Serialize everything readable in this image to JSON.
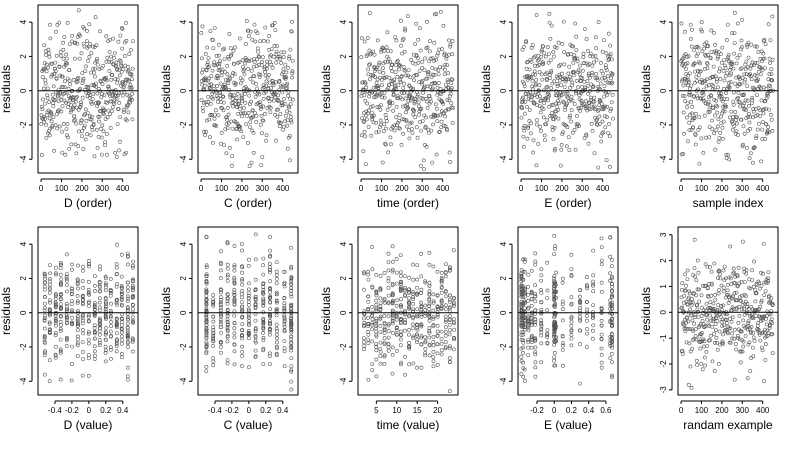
{
  "chart_data": [
    {
      "type": "scatter",
      "xlabel": "D (order)",
      "ylabel": "residuals",
      "xlim": [
        -15,
        475
      ],
      "ylim": [
        -4.8,
        5.0
      ],
      "xticks": [
        0,
        100,
        200,
        300,
        400
      ],
      "yticks": [
        -4,
        -2,
        0,
        2,
        4
      ],
      "reference_line_y": 0,
      "n_points": 450,
      "x_pattern": "index",
      "y_pattern": "normal",
      "y_sd": 1.7,
      "y_extent": [
        -3.9,
        4.7
      ],
      "seed": 11
    },
    {
      "type": "scatter",
      "xlabel": "C (order)",
      "ylabel": "residuals",
      "xlim": [
        -15,
        475
      ],
      "ylim": [
        -4.8,
        5.0
      ],
      "xticks": [
        0,
        100,
        200,
        300,
        400
      ],
      "yticks": [
        -4,
        -2,
        0,
        2,
        4
      ],
      "reference_line_y": 0,
      "n_points": 450,
      "x_pattern": "index",
      "y_pattern": "normal",
      "y_sd": 1.7,
      "y_extent": [
        -4.6,
        4.1
      ],
      "seed": 23
    },
    {
      "type": "scatter",
      "xlabel": "time (order)",
      "ylabel": "residuals",
      "xlim": [
        -15,
        475
      ],
      "ylim": [
        -4.8,
        5.0
      ],
      "xticks": [
        0,
        100,
        200,
        300,
        400
      ],
      "yticks": [
        -4,
        -2,
        0,
        2,
        4
      ],
      "reference_line_y": 0,
      "n_points": 450,
      "x_pattern": "index",
      "y_pattern": "normal",
      "y_sd": 1.7,
      "y_extent": [
        -4.6,
        4.6
      ],
      "seed": 37
    },
    {
      "type": "scatter",
      "xlabel": "E (order)",
      "ylabel": "residuals",
      "xlim": [
        -15,
        475
      ],
      "ylim": [
        -4.8,
        5.0
      ],
      "xticks": [
        0,
        100,
        200,
        300,
        400
      ],
      "yticks": [
        -4,
        -2,
        0,
        2,
        4
      ],
      "reference_line_y": 0,
      "n_points": 450,
      "x_pattern": "index",
      "y_pattern": "normal",
      "y_sd": 1.7,
      "y_extent": [
        -4.5,
        4.6
      ],
      "seed": 41
    },
    {
      "type": "scatter",
      "xlabel": "sample index",
      "ylabel": "residuals",
      "xlim": [
        -15,
        475
      ],
      "ylim": [
        -4.8,
        5.0
      ],
      "xticks": [
        0,
        100,
        200,
        300,
        400
      ],
      "yticks": [
        -4,
        -2,
        0,
        2,
        4
      ],
      "reference_line_y": 0,
      "n_points": 450,
      "x_pattern": "index",
      "y_pattern": "normal",
      "y_sd": 1.7,
      "y_extent": [
        -4.4,
        4.6
      ],
      "seed": 53
    },
    {
      "type": "scatter",
      "xlabel": "D (value)",
      "ylabel": "residuals",
      "xlim": [
        -0.6,
        0.58
      ],
      "ylim": [
        -4.8,
        5.0
      ],
      "xticks": [
        -0.4,
        -0.2,
        0.0,
        0.2,
        0.4
      ],
      "yticks": [
        -4,
        -2,
        0,
        2,
        4
      ],
      "reference_line_y": 0,
      "n_points": 450,
      "x_pattern": "discrete",
      "x_levels": [
        -0.52,
        -0.46,
        -0.39,
        -0.33,
        -0.26,
        -0.2,
        -0.13,
        -0.07,
        0.0,
        0.07,
        0.13,
        0.2,
        0.26,
        0.33,
        0.39,
        0.46,
        0.52
      ],
      "y_pattern": "normal",
      "y_sd": 1.6,
      "y_extent": [
        -4.0,
        4.5
      ],
      "seed": 61
    },
    {
      "type": "scatter",
      "xlabel": "C (value)",
      "ylabel": "residuals",
      "xlim": [
        -0.6,
        0.58
      ],
      "ylim": [
        -4.8,
        5.0
      ],
      "xticks": [
        -0.4,
        -0.2,
        0.0,
        0.2,
        0.4
      ],
      "yticks": [
        -4,
        -2,
        0,
        2,
        4
      ],
      "reference_line_y": 0,
      "n_points": 450,
      "x_pattern": "discrete",
      "x_levels": [
        -0.5,
        -0.5,
        -0.42,
        -0.33,
        -0.25,
        -0.17,
        -0.08,
        0.0,
        0.08,
        0.17,
        0.25,
        0.33,
        0.42,
        0.5,
        0.5
      ],
      "y_pattern": "normal",
      "y_sd": 1.6,
      "y_extent": [
        -4.5,
        4.6
      ],
      "seed": 71
    },
    {
      "type": "scatter",
      "xlabel": "time (value)",
      "ylabel": "residuals",
      "xlim": [
        0.5,
        25
      ],
      "ylim": [
        -4.8,
        5.0
      ],
      "xticks": [
        5,
        10,
        15,
        20
      ],
      "yticks": [
        -4,
        -2,
        0,
        2,
        4
      ],
      "reference_line_y": 0,
      "n_points": 450,
      "x_pattern": "discrete",
      "x_levels": [
        2,
        3,
        4,
        5,
        6,
        7,
        8,
        9,
        10,
        11,
        12,
        13,
        14,
        15,
        16,
        17,
        18,
        19,
        20,
        21,
        22,
        23,
        24
      ],
      "y_pattern": "normal",
      "y_sd": 1.6,
      "y_extent": [
        -4.6,
        4.6
      ],
      "seed": 83
    },
    {
      "type": "scatter",
      "xlabel": "E (value)",
      "ylabel": "residuals",
      "xlim": [
        -0.42,
        0.74
      ],
      "ylim": [
        -4.8,
        5.0
      ],
      "xticks": [
        -0.2,
        0.0,
        0.2,
        0.4,
        0.6
      ],
      "yticks": [
        -4,
        -2,
        0,
        2,
        4
      ],
      "reference_line_y": 0,
      "n_points": 450,
      "x_pattern": "discrete",
      "x_levels": [
        -0.38,
        -0.38,
        -0.38,
        -0.36,
        -0.36,
        -0.34,
        -0.3,
        -0.26,
        -0.22,
        -0.15,
        -0.08,
        0.0,
        0.0,
        0.0,
        0.01,
        0.02,
        0.1,
        0.2,
        0.3,
        0.38,
        0.45,
        0.55,
        0.65,
        0.67,
        0.67
      ],
      "y_pattern": "normal",
      "y_sd": 1.6,
      "y_extent": [
        -4.4,
        4.5
      ],
      "seed": 97
    },
    {
      "type": "scatter",
      "xlabel": "randam example",
      "ylabel": "residuals",
      "xlim": [
        -15,
        475
      ],
      "ylim": [
        -3.2,
        3.3
      ],
      "xticks": [
        0,
        100,
        200,
        300,
        400
      ],
      "yticks": [
        -3,
        -2,
        -1,
        0,
        1,
        2,
        3
      ],
      "reference_line_y": 0,
      "n_points": 450,
      "x_pattern": "index",
      "y_pattern": "normal",
      "y_sd": 1.0,
      "y_extent": [
        -3.0,
        2.9
      ],
      "seed": 109
    }
  ]
}
